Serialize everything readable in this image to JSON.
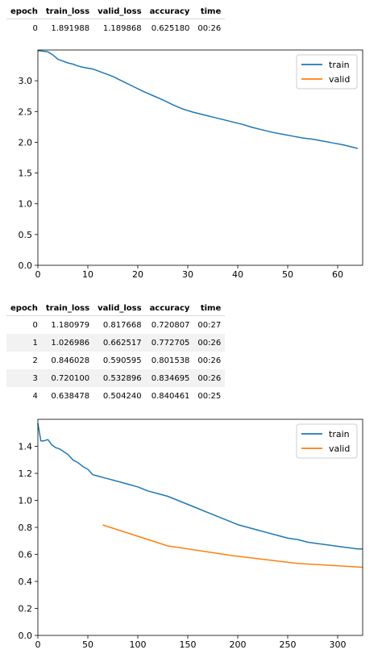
{
  "tables": [
    {
      "columns": [
        "epoch",
        "train_loss",
        "valid_loss",
        "accuracy",
        "time"
      ],
      "rows": [
        [
          "0",
          "1.891988",
          "1.189868",
          "0.625180",
          "00:26"
        ]
      ]
    },
    {
      "columns": [
        "epoch",
        "train_loss",
        "valid_loss",
        "accuracy",
        "time"
      ],
      "rows": [
        [
          "0",
          "1.180979",
          "0.817668",
          "0.720807",
          "00:27"
        ],
        [
          "1",
          "1.026986",
          "0.662517",
          "0.772705",
          "00:26"
        ],
        [
          "2",
          "0.846028",
          "0.590595",
          "0.801538",
          "00:26"
        ],
        [
          "3",
          "0.720100",
          "0.532896",
          "0.834695",
          "00:26"
        ],
        [
          "4",
          "0.638478",
          "0.504240",
          "0.840461",
          "00:25"
        ]
      ]
    }
  ],
  "chart_data": [
    {
      "type": "line",
      "xlim": [
        0,
        65
      ],
      "ylim": [
        0,
        3.5
      ],
      "xticks": [
        "0",
        "10",
        "20",
        "30",
        "40",
        "50",
        "60"
      ],
      "yticks": [
        "0.0",
        "0.5",
        "1.0",
        "1.5",
        "2.0",
        "2.5",
        "3.0"
      ],
      "legend_position": "top-right",
      "grid": false,
      "series": [
        {
          "name": "train",
          "color": "#1f77b4",
          "x": [
            0,
            2,
            3,
            4,
            6,
            7,
            8,
            9,
            11,
            13,
            15,
            17,
            19,
            21,
            23,
            25,
            27,
            29,
            31,
            33,
            35,
            37,
            39,
            41,
            43,
            45,
            47,
            49,
            51,
            53,
            55,
            57,
            59,
            61,
            63,
            64
          ],
          "y": [
            3.49,
            3.47,
            3.42,
            3.35,
            3.29,
            3.27,
            3.24,
            3.22,
            3.19,
            3.13,
            3.07,
            2.99,
            2.91,
            2.83,
            2.76,
            2.69,
            2.61,
            2.54,
            2.49,
            2.45,
            2.41,
            2.37,
            2.33,
            2.29,
            2.24,
            2.2,
            2.16,
            2.13,
            2.1,
            2.07,
            2.05,
            2.02,
            1.99,
            1.96,
            1.92,
            1.9
          ]
        },
        {
          "name": "valid",
          "color": "#ff7f0e",
          "x": [],
          "y": []
        }
      ]
    },
    {
      "type": "line",
      "xlim": [
        0,
        325
      ],
      "ylim": [
        0,
        1.6
      ],
      "xticks": [
        "0",
        "50",
        "100",
        "150",
        "200",
        "250",
        "300"
      ],
      "yticks": [
        "0.0",
        "0.2",
        "0.4",
        "0.6",
        "0.8",
        "1.0",
        "1.2",
        "1.4"
      ],
      "legend_position": "top-right",
      "grid": false,
      "series": [
        {
          "name": "train",
          "color": "#1f77b4",
          "x": [
            0,
            3,
            6,
            10,
            14,
            18,
            22,
            26,
            30,
            35,
            40,
            45,
            50,
            55,
            60,
            70,
            80,
            90,
            100,
            110,
            120,
            130,
            140,
            150,
            160,
            170,
            180,
            190,
            200,
            210,
            220,
            230,
            240,
            250,
            260,
            270,
            280,
            290,
            300,
            310,
            320,
            325
          ],
          "y": [
            1.57,
            1.44,
            1.44,
            1.45,
            1.41,
            1.39,
            1.38,
            1.36,
            1.34,
            1.3,
            1.28,
            1.25,
            1.23,
            1.19,
            1.18,
            1.16,
            1.14,
            1.12,
            1.1,
            1.07,
            1.05,
            1.03,
            1.0,
            0.97,
            0.94,
            0.91,
            0.88,
            0.85,
            0.82,
            0.8,
            0.78,
            0.76,
            0.74,
            0.72,
            0.71,
            0.69,
            0.68,
            0.67,
            0.66,
            0.65,
            0.64,
            0.64
          ]
        },
        {
          "name": "valid",
          "color": "#ff7f0e",
          "x": [
            65,
            130,
            195,
            260,
            325
          ],
          "y": [
            0.817668,
            0.662517,
            0.590595,
            0.532896,
            0.50424
          ]
        }
      ]
    }
  ]
}
